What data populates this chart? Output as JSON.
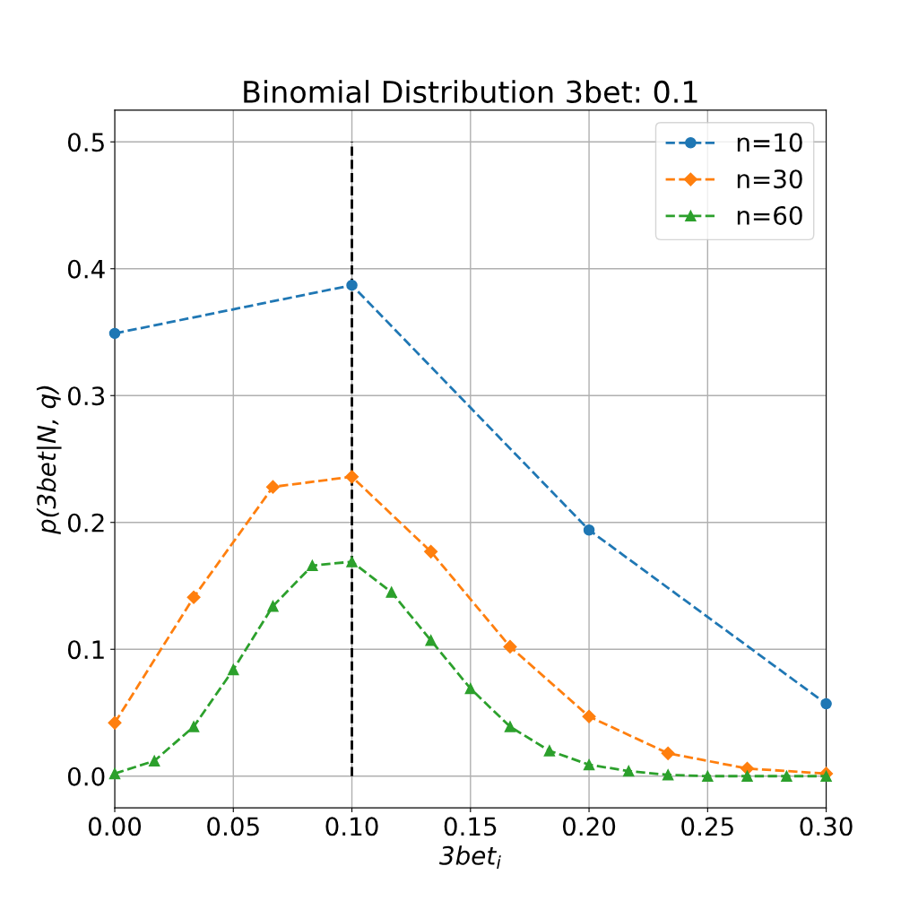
{
  "chart_data": {
    "type": "line",
    "title": "Binomial Distribution 3bet: 0.1",
    "xlabel": "3bet$_{i}$",
    "ylabel": "p(3bet|N, q)",
    "series": [
      {
        "name": "n=10",
        "color": "#1f77b4",
        "marker": "circle",
        "x": [
          0,
          0.1,
          0.2,
          0.3
        ],
        "values": [
          0.349,
          0.387,
          0.194,
          0.057
        ]
      },
      {
        "name": "n=30",
        "color": "#ff7f0e",
        "marker": "diamond",
        "x": [
          0,
          0.0333,
          0.0667,
          0.1,
          0.1333,
          0.1667,
          0.2,
          0.2333,
          0.2667,
          0.3
        ],
        "values": [
          0.042,
          0.141,
          0.228,
          0.236,
          0.177,
          0.102,
          0.047,
          0.018,
          0.006,
          0.002
        ]
      },
      {
        "name": "n=60",
        "color": "#2ca02c",
        "marker": "triangle",
        "x": [
          0,
          0.0167,
          0.0333,
          0.05,
          0.0667,
          0.0833,
          0.1,
          0.1167,
          0.1333,
          0.15,
          0.1667,
          0.1833,
          0.2,
          0.2167,
          0.2333,
          0.25,
          0.2667,
          0.2833,
          0.3
        ],
        "values": [
          0.002,
          0.012,
          0.039,
          0.084,
          0.134,
          0.166,
          0.169,
          0.145,
          0.107,
          0.069,
          0.039,
          0.02,
          0.009,
          0.004,
          0.001,
          0.0,
          0.0,
          0.0,
          0.0
        ]
      }
    ],
    "line_style": "dashed",
    "ref_lines": [
      {
        "axis": "x",
        "value": 0.1,
        "label": null,
        "color": "#000000",
        "line_style": "dashed"
      }
    ],
    "xlim": [
      0,
      0.3
    ],
    "ylim": [
      -0.025,
      0.525
    ],
    "xticks": [
      {
        "value": 0,
        "label": "0.00"
      },
      {
        "value": 0.05,
        "label": "0.05"
      },
      {
        "value": 0.1,
        "label": "0.10"
      },
      {
        "value": 0.15,
        "label": "0.15"
      },
      {
        "value": 0.2,
        "label": "0.20"
      },
      {
        "value": 0.25,
        "label": "0.25"
      },
      {
        "value": 0.3,
        "label": "0.30"
      }
    ],
    "yticks": [
      {
        "value": 0,
        "label": "0.0"
      },
      0.1,
      0.2,
      0.3,
      0.4,
      0.5
    ],
    "grid": true,
    "legend": "top right"
  }
}
